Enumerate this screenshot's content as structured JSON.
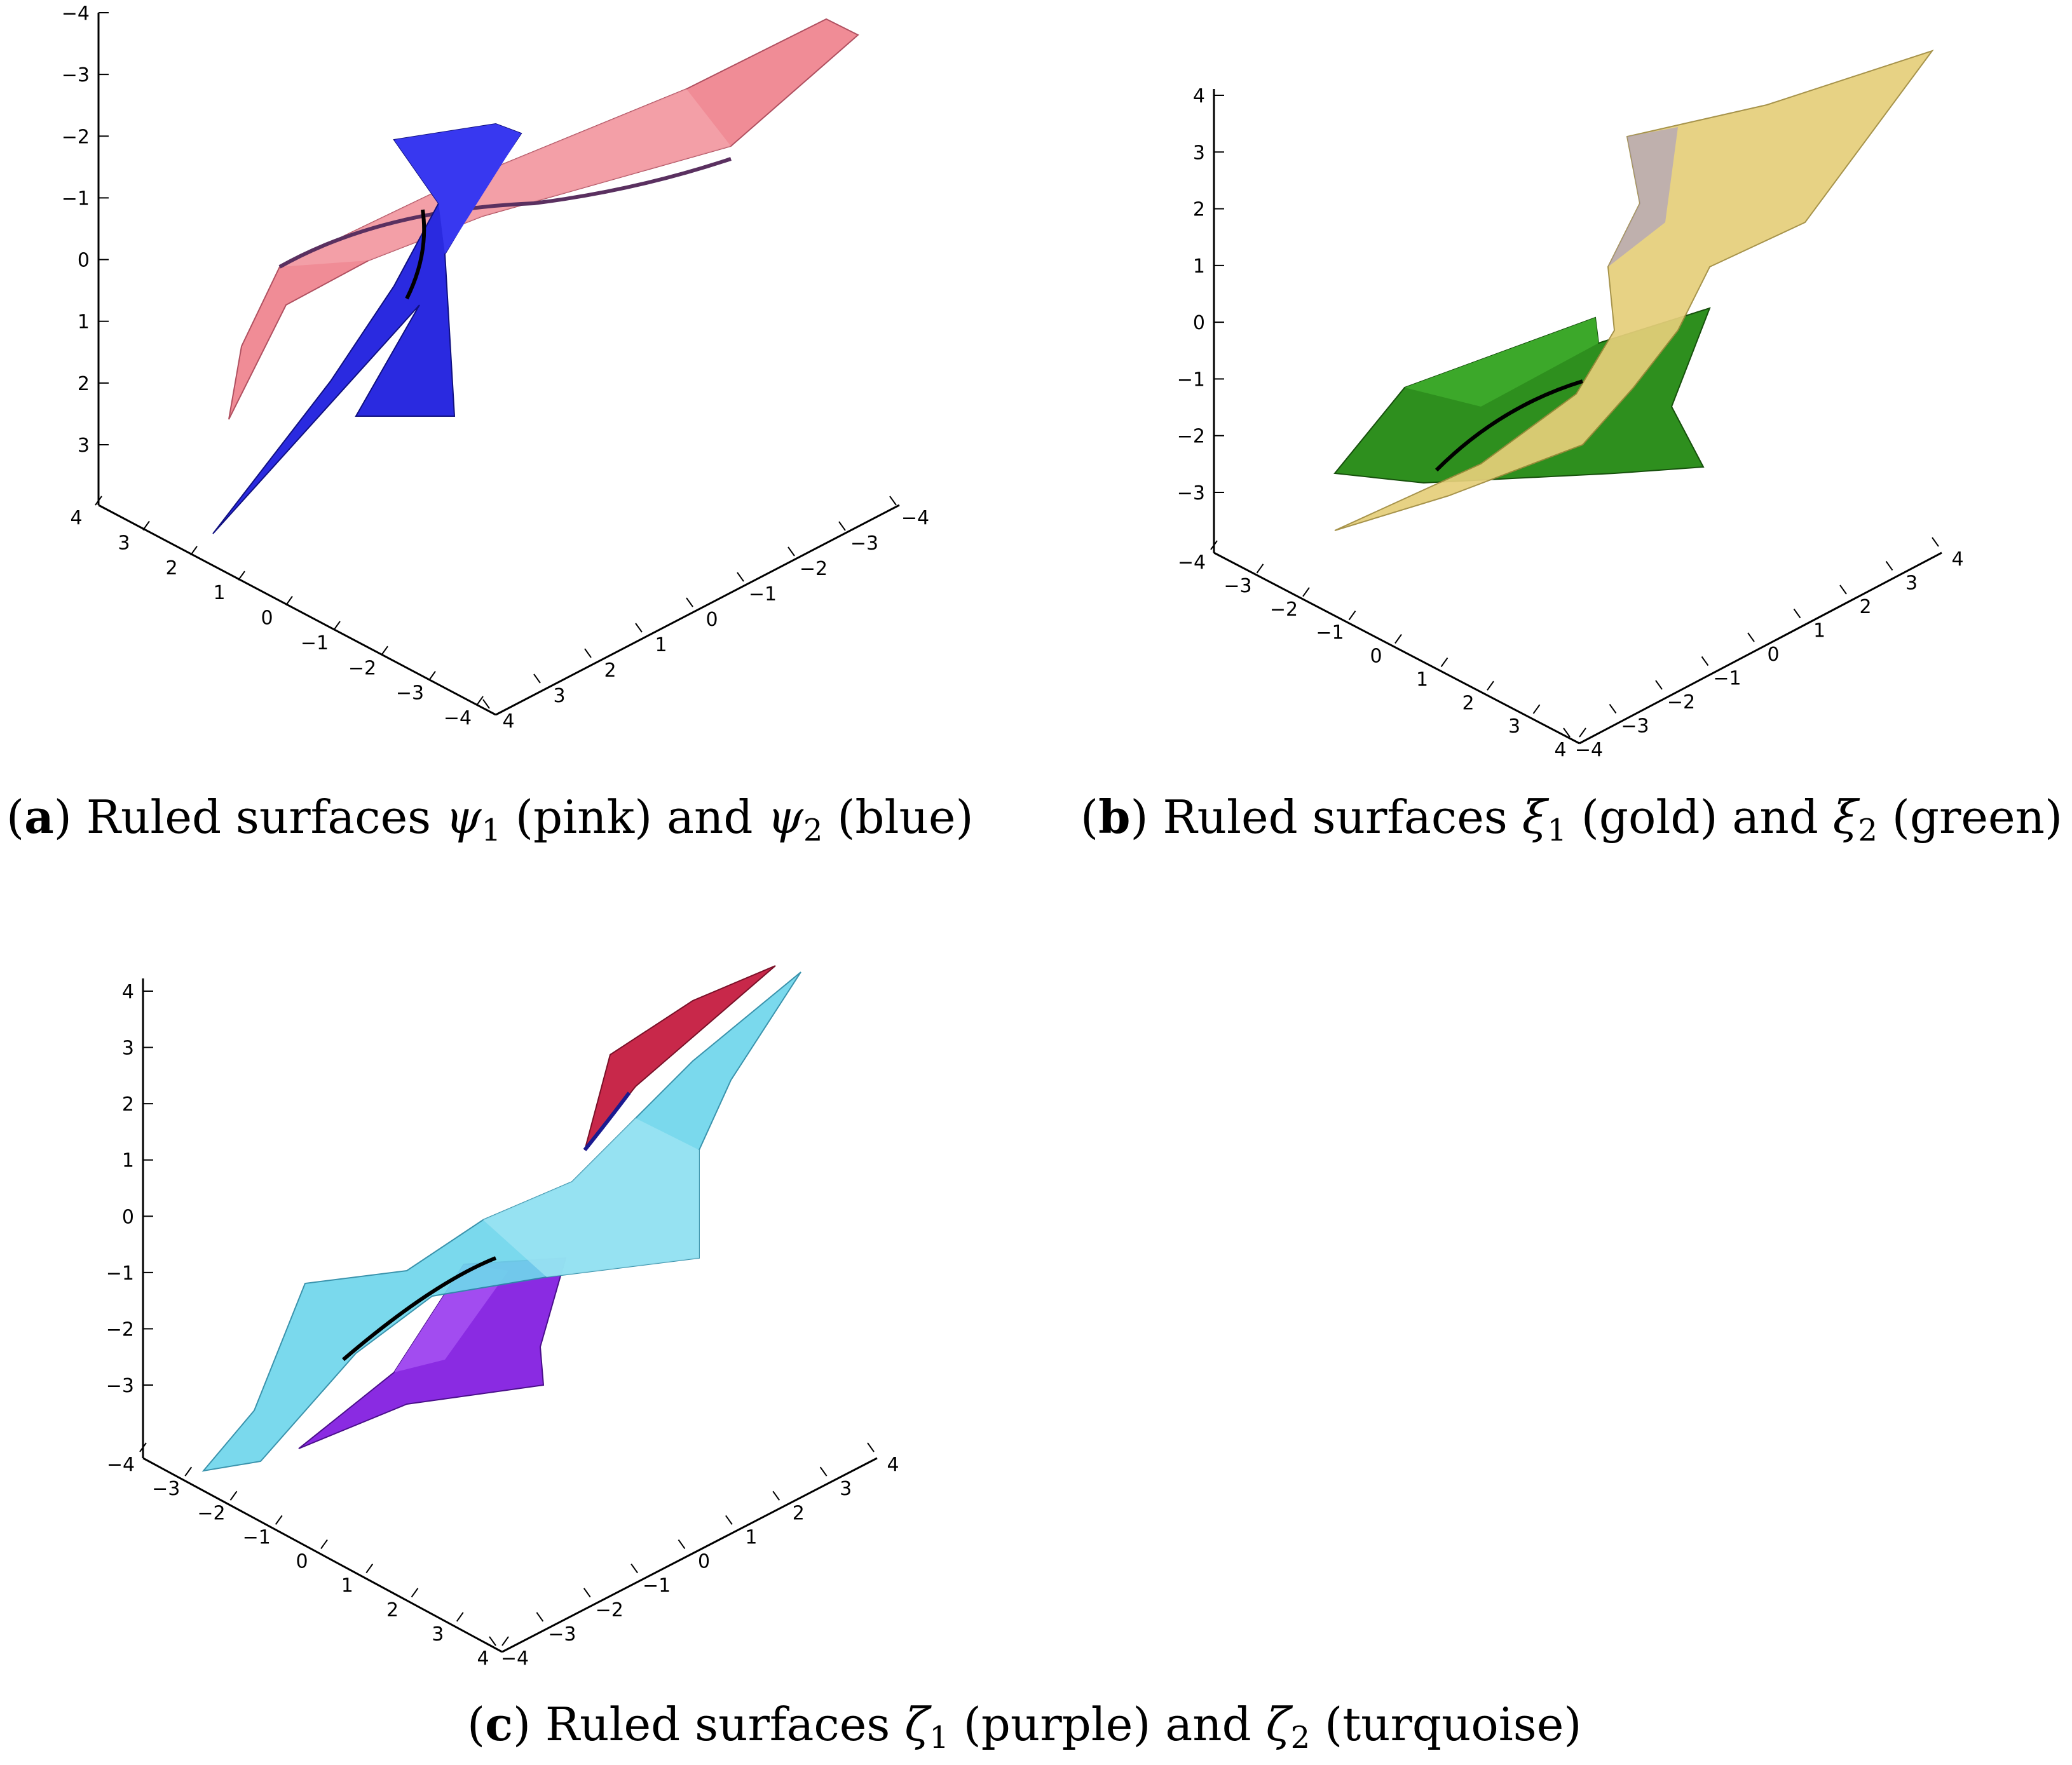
{
  "figures": [
    {
      "id": "a",
      "label": "a",
      "caption_lead": "Ruled surfaces",
      "symbol": "ψ",
      "sym1_sub": "1",
      "sym1_note": "(pink)",
      "and_word": "and",
      "sym2_sub": "2",
      "sym2_note": "(blue)",
      "surface_colors": [
        "#f0909a",
        "#2a2ae0"
      ],
      "vertical_ticks": [
        "−4",
        "−3",
        "−2",
        "−1",
        "0",
        "1",
        "2",
        "3"
      ],
      "left_floor_ticks": [
        "4",
        "3",
        "2",
        "1",
        "0",
        "−1",
        "−2",
        "−3",
        "−4"
      ],
      "right_floor_ticks": [
        "4",
        "3",
        "2",
        "1",
        "0",
        "−1",
        "−2",
        "−3",
        "−4"
      ]
    },
    {
      "id": "b",
      "label": "b",
      "caption_lead": "Ruled surfaces",
      "symbol": "ξ",
      "sym1_sub": "1",
      "sym1_note": "(gold)",
      "and_word": "and",
      "sym2_sub": "2",
      "sym2_note": "(green)",
      "surface_colors": [
        "#e6cf7a",
        "#2e8f1e"
      ],
      "vertical_ticks": [
        "4",
        "3",
        "2",
        "1",
        "0",
        "−1",
        "−2",
        "−3"
      ],
      "left_floor_ticks": [
        "−4",
        "−3",
        "−2",
        "−1",
        "0",
        "1",
        "2",
        "3",
        "4"
      ],
      "right_floor_ticks": [
        "−4",
        "−3",
        "−2",
        "−1",
        "0",
        "1",
        "2",
        "3",
        "4"
      ]
    },
    {
      "id": "c",
      "label": "c",
      "caption_lead": "Ruled surfaces",
      "symbol": "ζ",
      "sym1_sub": "1",
      "sym1_note": "(purple)",
      "and_word": "and",
      "sym2_sub": "2",
      "sym2_note": "(turquoise)",
      "surface_colors": [
        "#8a2be2",
        "#6fd6ec"
      ],
      "vertical_ticks": [
        "4",
        "3",
        "2",
        "1",
        "0",
        "−1",
        "−2",
        "−3"
      ],
      "left_floor_ticks": [
        "−4",
        "−3",
        "−2",
        "−1",
        "0",
        "1",
        "2",
        "3",
        "4"
      ],
      "right_floor_ticks": [
        "−4",
        "−3",
        "−2",
        "−1",
        "0",
        "1",
        "2",
        "3",
        "4"
      ]
    }
  ]
}
